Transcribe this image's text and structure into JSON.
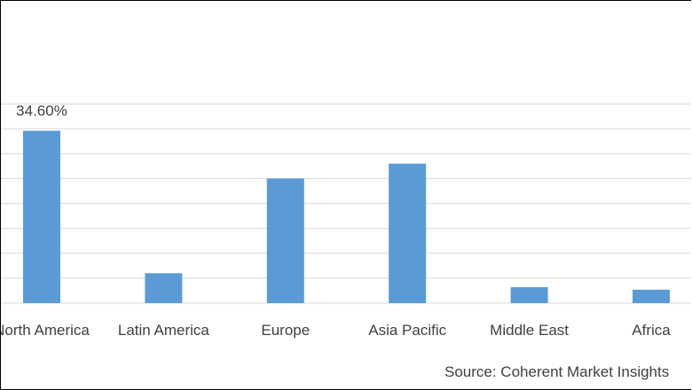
{
  "chart_data": {
    "type": "bar",
    "categories": [
      "North America",
      "Latin America",
      "Europe",
      "Asia Pacific",
      "Middle East",
      "Africa"
    ],
    "values": [
      34.6,
      6.0,
      25.0,
      28.0,
      3.2,
      2.7
    ],
    "value_unit": "%",
    "data_labels": [
      {
        "category": "North America",
        "text": "34.60%"
      }
    ],
    "title": "",
    "xlabel": "",
    "ylabel": "",
    "ylim": [
      0,
      40
    ],
    "grid": true,
    "legend": "none",
    "bar_color": "#5b9bd5",
    "grid_color": "#d9d9d9"
  },
  "source": "Source: Coherent Market Insights"
}
